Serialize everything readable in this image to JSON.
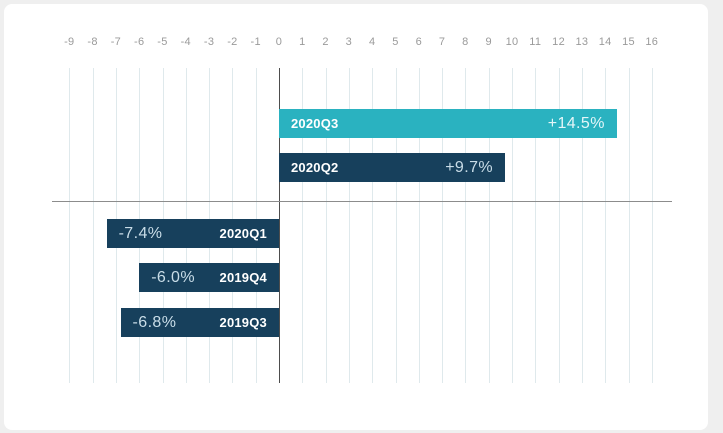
{
  "chart_data": {
    "type": "bar",
    "orientation": "horizontal",
    "title": "",
    "xlabel": "",
    "ylabel": "",
    "categories": [
      "2020Q3",
      "2020Q2",
      "2020Q1",
      "2019Q4",
      "2019Q3"
    ],
    "values": [
      14.5,
      9.7,
      -7.4,
      -6.0,
      -6.8
    ],
    "value_labels": [
      "+14.5%",
      "+9.7%",
      "-7.4%",
      "-6.0%",
      "-6.8%"
    ],
    "x_ticks": [
      -9,
      -8,
      -7,
      -6,
      -5,
      -4,
      -3,
      -2,
      -1,
      0,
      1,
      2,
      3,
      4,
      5,
      6,
      7,
      8,
      9,
      10,
      11,
      12,
      13,
      14,
      15,
      16
    ],
    "xlim": [
      -9.75,
      17.25
    ],
    "grid": true,
    "legend_position": "none",
    "bar_colors": [
      "#2ab2c0",
      "#17405c",
      "#17405c",
      "#17405c",
      "#17405c"
    ]
  },
  "colors": {
    "teal": "#2ab2c0",
    "navy": "#17405c",
    "category_text": "#ffffff",
    "value_text_on_teal": "#e4f6f8",
    "value_text_on_navy": "#c9dde8",
    "tick_label": "#9a9a9a",
    "gridline": "#dfe9ec",
    "zero_line": "#4d4d4d",
    "baseline": "#8c8c8c",
    "page_background": "#efefef",
    "card_background": "#ffffff"
  }
}
